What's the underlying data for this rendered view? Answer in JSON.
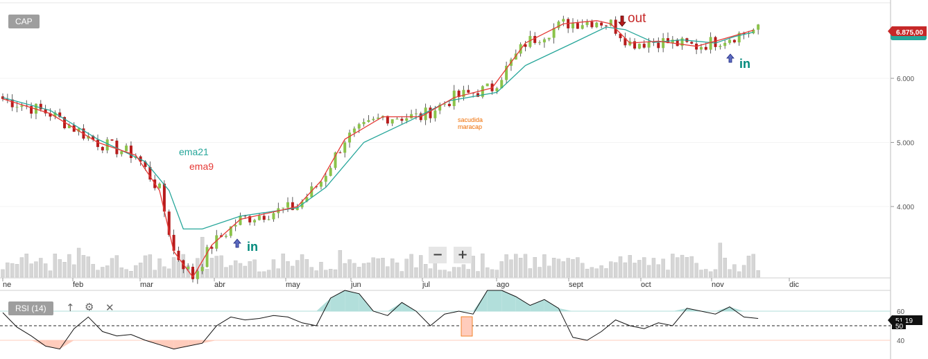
{
  "symbol_button": "CAP",
  "indicator": {
    "label": "RSI (14)",
    "up_icon": "arrow-up-icon",
    "settings_icon": "gear-icon",
    "close_icon": "close-icon",
    "up_glyph": "↑",
    "settings_glyph": "⚙",
    "close_glyph": "✕"
  },
  "zoom": {
    "minus": "−",
    "plus": "+"
  },
  "price_badge": "6.875,00",
  "rsi_badge_top": "51,19",
  "rsi_badge_bottom": "50",
  "colors": {
    "bull": "#8bc34a",
    "bear": "#b71c1c",
    "ema9": "#e53935",
    "ema21": "#26a69a",
    "volume": "#d6d6d6",
    "rsi_line": "#111111",
    "rsi_overbought_fill": "#b2dfdb",
    "rsi_oversold_fill": "#ffccbc",
    "badge_price": "#c62828",
    "badge_ema": "#26a69a"
  },
  "chart_data": [
    {
      "type": "candlestick",
      "x_tick_labels": [
        "ne",
        "feb",
        "mar",
        "abr",
        "may",
        "jun",
        "jul",
        "ago",
        "sept",
        "oct",
        "nov",
        "dic"
      ],
      "y_tick_labels": [
        "4.000",
        "5.000",
        "6.000"
      ],
      "y_ticks": [
        4000,
        5000,
        6000
      ],
      "series": [
        {
          "name": "ema21",
          "points": [
            [
              0,
              5700
            ],
            [
              10,
              5500
            ],
            [
              20,
              5050
            ],
            [
              30,
              4700
            ],
            [
              35,
              4250
            ],
            [
              38,
              3650
            ],
            [
              42,
              3650
            ],
            [
              50,
              3850
            ],
            [
              62,
              3980
            ],
            [
              68,
              4300
            ],
            [
              76,
              5000
            ],
            [
              86,
              5350
            ],
            [
              94,
              5650
            ],
            [
              104,
              5780
            ],
            [
              110,
              6200
            ],
            [
              120,
              6550
            ],
            [
              127,
              6800
            ],
            [
              131,
              6760
            ],
            [
              137,
              6560
            ],
            [
              143,
              6600
            ],
            [
              150,
              6550
            ],
            [
              154,
              6650
            ],
            [
              158,
              6720
            ]
          ]
        },
        {
          "name": "ema9",
          "points": [
            [
              0,
              5680
            ],
            [
              10,
              5450
            ],
            [
              20,
              5000
            ],
            [
              28,
              4800
            ],
            [
              33,
              4250
            ],
            [
              36,
              3300
            ],
            [
              40,
              2900
            ],
            [
              44,
              3400
            ],
            [
              50,
              3800
            ],
            [
              62,
              4000
            ],
            [
              67,
              4400
            ],
            [
              72,
              5050
            ],
            [
              80,
              5400
            ],
            [
              88,
              5400
            ],
            [
              95,
              5700
            ],
            [
              103,
              5850
            ],
            [
              110,
              6550
            ],
            [
              118,
              6850
            ],
            [
              125,
              6900
            ],
            [
              128,
              6850
            ],
            [
              132,
              6550
            ],
            [
              138,
              6580
            ],
            [
              146,
              6500
            ],
            [
              151,
              6600
            ],
            [
              158,
              6750
            ]
          ]
        }
      ],
      "annotations": [
        {
          "text": "ema21"
        },
        {
          "text": "ema9"
        },
        {
          "text": "in"
        },
        {
          "text": "in"
        },
        {
          "text": "out"
        },
        {
          "text": "sacudida"
        },
        {
          "text": "maracap"
        }
      ],
      "last_price": 6875
    },
    {
      "type": "line",
      "title": "RSI (14)",
      "y_tick_labels": [
        "40",
        "60"
      ],
      "levels": [
        40,
        50,
        60
      ],
      "x": [
        0,
        3,
        6,
        9,
        12,
        15,
        18,
        21,
        24,
        27,
        30,
        33,
        36,
        39,
        42,
        45,
        48,
        51,
        54,
        57,
        60,
        63,
        66,
        69,
        72,
        75,
        78,
        81,
        84,
        87,
        90,
        93,
        96,
        99,
        102,
        105,
        108,
        111,
        114,
        117,
        120,
        123,
        126,
        129,
        132,
        135,
        138,
        141,
        144,
        147,
        150,
        153,
        156,
        159
      ],
      "values": [
        59,
        49,
        43,
        36,
        34,
        48,
        56,
        46,
        43,
        44,
        40,
        37,
        34,
        36,
        38,
        50,
        56,
        54,
        55,
        57,
        56,
        52,
        50,
        69,
        75,
        72,
        60,
        57,
        66,
        60,
        50,
        58,
        60,
        58,
        76,
        75,
        70,
        64,
        68,
        62,
        42,
        40,
        46,
        54,
        50,
        48,
        52,
        50,
        62,
        60,
        58,
        63,
        56,
        55
      ]
    }
  ]
}
